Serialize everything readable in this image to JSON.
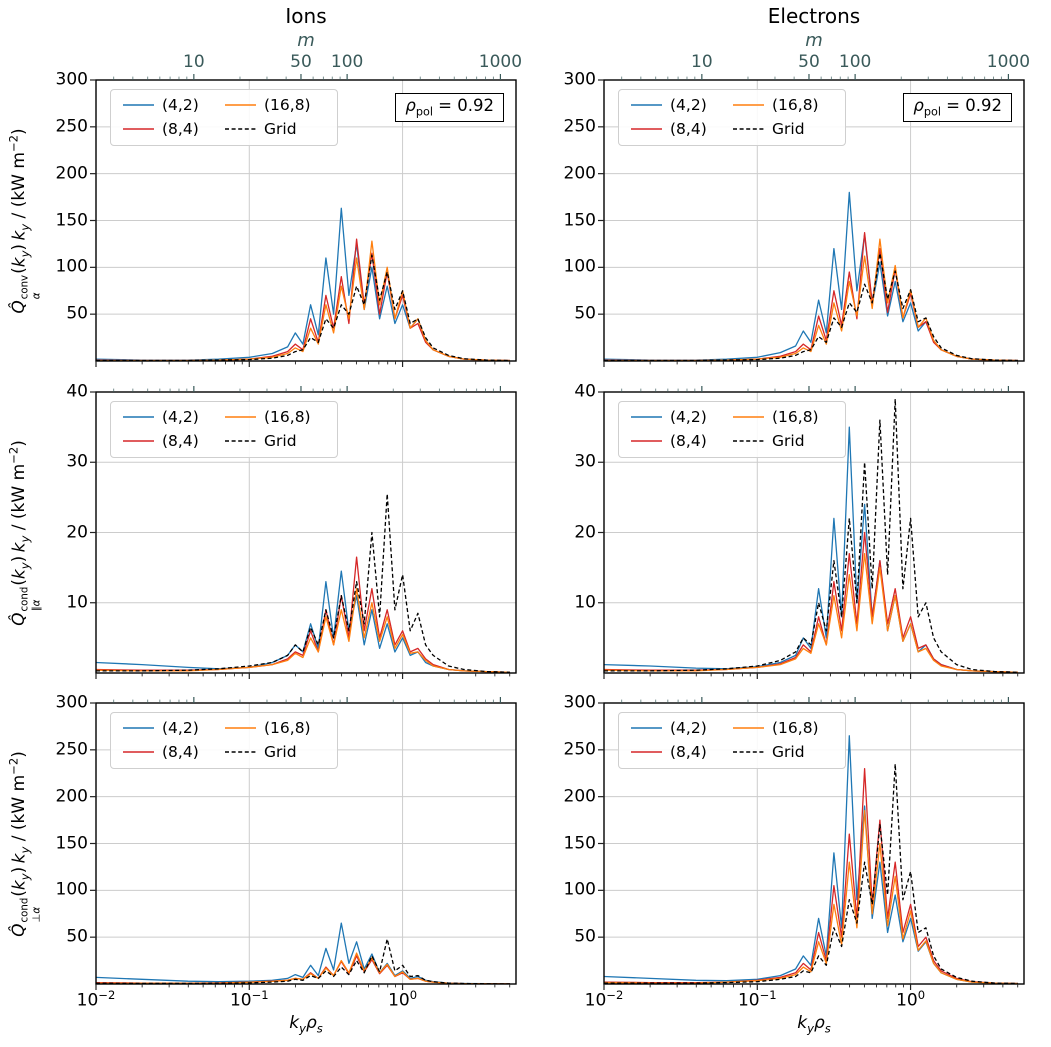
{
  "chart_data": {
    "type": "line",
    "description": "Spectral heat flux densities vs binormal wavenumber for ions and electrons at rho_pol = 0.92, comparing velocity-space resolutions (4,2), (8,4), (16,8) against Grid reference",
    "title_columns": [
      "Ions",
      "Electrons"
    ],
    "xlabel_html": "<i>k<sub>y</sub>ρ<sub>s</sub></i>",
    "xaxis": {
      "scale": "log",
      "lim_log10": [
        -2,
        0.74
      ],
      "ticks": [
        {
          "label_html": "10<sup>−2</sup>",
          "log10": -2
        },
        {
          "label_html": "10<sup>−1</sup>",
          "log10": -1
        },
        {
          "label_html": "10<sup>0</sup>",
          "log10": 0
        }
      ],
      "gridlines_log10": [
        -1,
        0
      ]
    },
    "top_axis": {
      "label_html": "<i>m</i>",
      "m_per_ky": 230,
      "tick_values": [
        10,
        50,
        100,
        1000
      ],
      "tick_labels": [
        "10",
        "50",
        "100",
        "1000"
      ],
      "color": "#3a5a5a"
    },
    "annotation_html": "<i>ρ</i><sub>pol</sub> = 0.92",
    "legend": [
      "(4,2)",
      "(8,4)",
      "(16,8)",
      "Grid"
    ],
    "series_meta": [
      {
        "name": "(4,2)",
        "color": "#1f77b4",
        "dash": null
      },
      {
        "name": "(8,4)",
        "color": "#d62728",
        "dash": null
      },
      {
        "name": "(16,8)",
        "color": "#ff7f0e",
        "dash": null
      },
      {
        "name": "Grid",
        "color": "#000000",
        "dash": "4,2.6"
      }
    ],
    "grid_color": "#cccccc",
    "x_log10": [
      -2,
      -1.7,
      -1.4,
      -1.2,
      -1.0,
      -0.85,
      -0.75,
      -0.7,
      -0.65,
      -0.6,
      -0.55,
      -0.5,
      -0.45,
      -0.4,
      -0.35,
      -0.3,
      -0.25,
      -0.2,
      -0.15,
      -0.1,
      -0.05,
      0,
      0.05,
      0.1,
      0.15,
      0.2,
      0.3,
      0.4,
      0.55,
      0.7
    ],
    "rows": [
      {
        "quantity": "convective heat flux",
        "ylabel_html": "<i>Q̂</i><span class='ss'><span>conv</span><span><i>α</i></span></span>(<i>k<sub>y</sub></i>)&thinsp;<i>k<sub>y</sub></i> / (kW m<sup>−2</sup>)",
        "ylim": [
          0,
          300
        ],
        "yticks": [
          50,
          100,
          150,
          200,
          250,
          300
        ]
      },
      {
        "quantity": "parallel conductive heat flux",
        "ylabel_html": "<i>Q̂</i><span class='ss'><span>cond</span><span>∥<i>α</i></span></span>(<i>k<sub>y</sub></i>)&thinsp;<i>k<sub>y</sub></i> / (kW m<sup>−2</sup>)",
        "ylim": [
          0,
          40
        ],
        "yticks": [
          10,
          20,
          30,
          40
        ]
      },
      {
        "quantity": "perpendicular conductive heat flux",
        "ylabel_html": "<i>Q̂</i><span class='ss'><span>cond</span><span>⊥<i>α</i></span></span>(<i>k<sub>y</sub></i>)&thinsp;<i>k<sub>y</sub></i> / (kW m<sup>−2</sup>)",
        "ylim": [
          0,
          300
        ],
        "yticks": [
          50,
          100,
          150,
          200,
          250,
          300
        ]
      }
    ],
    "panels": [
      {
        "row": 0,
        "col": 0,
        "name": "ions-conv",
        "series": [
          [
            2,
            1,
            1,
            2,
            4,
            8,
            15,
            30,
            18,
            60,
            28,
            110,
            50,
            163,
            70,
            125,
            55,
            100,
            45,
            80,
            40,
            60,
            35,
            45,
            22,
            12,
            5,
            2,
            1,
            0.5
          ],
          [
            1,
            0.5,
            0.5,
            1,
            2,
            5,
            10,
            18,
            12,
            45,
            20,
            70,
            35,
            90,
            40,
            130,
            60,
            115,
            50,
            95,
            45,
            70,
            35,
            40,
            20,
            12,
            5,
            2,
            1,
            0.5
          ],
          [
            0.5,
            0.5,
            0.5,
            1,
            2,
            4,
            8,
            14,
            10,
            35,
            18,
            60,
            30,
            80,
            45,
            110,
            55,
            128,
            60,
            100,
            45,
            75,
            35,
            45,
            22,
            12,
            5,
            2,
            1,
            0.5
          ],
          [
            0.5,
            0.5,
            0.5,
            1,
            1.5,
            3,
            6,
            10,
            12,
            25,
            20,
            45,
            35,
            60,
            50,
            80,
            60,
            113,
            65,
            95,
            55,
            75,
            40,
            45,
            25,
            14,
            6,
            2.5,
            1,
            0.5
          ]
        ]
      },
      {
        "row": 0,
        "col": 1,
        "name": "electrons-conv",
        "series": [
          [
            2,
            1,
            1,
            2,
            4,
            9,
            16,
            32,
            20,
            65,
            30,
            120,
            55,
            180,
            75,
            135,
            60,
            105,
            48,
            85,
            42,
            62,
            32,
            42,
            22,
            12,
            5,
            2,
            1,
            0.5
          ],
          [
            1,
            0.5,
            0.5,
            1,
            2,
            5,
            10,
            18,
            12,
            48,
            22,
            75,
            38,
            95,
            45,
            137,
            62,
            120,
            52,
            98,
            46,
            72,
            36,
            42,
            20,
            12,
            5,
            2,
            1,
            0.5
          ],
          [
            0.5,
            0.5,
            0.5,
            1,
            2,
            4,
            8,
            14,
            10,
            38,
            18,
            62,
            32,
            85,
            48,
            112,
            56,
            130,
            62,
            102,
            46,
            76,
            36,
            46,
            22,
            12,
            5,
            2,
            1,
            0.5
          ],
          [
            0.5,
            0.5,
            0.5,
            1,
            1.5,
            3,
            6,
            10,
            12,
            26,
            20,
            46,
            36,
            62,
            52,
            82,
            62,
            115,
            66,
            96,
            56,
            76,
            42,
            46,
            26,
            14,
            6,
            2.5,
            1,
            0.5
          ]
        ]
      },
      {
        "row": 1,
        "col": 0,
        "name": "ions-cond-par",
        "series": [
          [
            1.5,
            1.2,
            0.8,
            0.6,
            0.8,
            1.5,
            2.5,
            4,
            3,
            7,
            3.5,
            13,
            5,
            14.5,
            6,
            11,
            4,
            9,
            3.5,
            7,
            3,
            5,
            2.5,
            3,
            1.5,
            1,
            0.5,
            0.3,
            0.2,
            0.1
          ],
          [
            0.5,
            0.4,
            0.4,
            0.5,
            0.8,
            1.2,
            2,
            3,
            2.5,
            6,
            3,
            9,
            4,
            11,
            5,
            16.5,
            6,
            12,
            5,
            9,
            4,
            6,
            3,
            3.5,
            2,
            1.2,
            0.5,
            0.3,
            0.2,
            0.1
          ],
          [
            0.4,
            0.3,
            0.3,
            0.5,
            0.8,
            1.2,
            1.8,
            2.8,
            2.2,
            5,
            3,
            8,
            4,
            9,
            4.5,
            12,
            5,
            10,
            4.5,
            8,
            3.5,
            5.5,
            2.8,
            3,
            1.8,
            1,
            0.5,
            0.3,
            0.2,
            0.1
          ],
          [
            0.3,
            0.3,
            0.4,
            0.6,
            1,
            1.5,
            2.5,
            4,
            3,
            6.5,
            4,
            9,
            5,
            11,
            6,
            13,
            7,
            20,
            8,
            25.5,
            9,
            14,
            6,
            8.5,
            4,
            2.5,
            1,
            0.5,
            0.2,
            0.1
          ]
        ]
      },
      {
        "row": 1,
        "col": 1,
        "name": "electrons-cond-par",
        "series": [
          [
            1.2,
            1,
            0.7,
            0.6,
            0.9,
            1.5,
            2.5,
            5,
            3.5,
            12,
            5,
            22,
            8,
            35,
            10,
            24,
            8,
            16,
            6,
            11,
            4.5,
            7,
            3,
            4,
            2,
            1.2,
            0.5,
            0.3,
            0.2,
            0.1
          ],
          [
            0.5,
            0.4,
            0.4,
            0.5,
            0.8,
            1.3,
            2.2,
            4,
            3,
            8,
            4,
            13,
            6,
            17,
            7,
            20,
            8,
            16,
            7,
            12,
            5,
            8,
            3.5,
            4,
            2,
            1.2,
            0.5,
            0.3,
            0.2,
            0.1
          ],
          [
            0.4,
            0.3,
            0.3,
            0.5,
            0.8,
            1.2,
            2,
            3.5,
            2.8,
            7,
            4,
            11,
            5,
            14,
            6,
            17,
            7,
            15,
            6,
            11,
            4.5,
            7,
            3,
            3.5,
            1.8,
            1,
            0.5,
            0.3,
            0.2,
            0.1
          ],
          [
            0.3,
            0.3,
            0.4,
            0.6,
            1,
            1.8,
            3,
            5,
            4,
            10,
            6,
            16,
            8,
            22,
            10,
            30,
            12,
            36,
            14,
            39,
            12,
            22,
            8,
            10,
            5,
            3,
            1.2,
            0.5,
            0.2,
            0.1
          ]
        ]
      },
      {
        "row": 2,
        "col": 0,
        "name": "ions-cond-perp",
        "series": [
          [
            7,
            5,
            3,
            2.5,
            3,
            4,
            6,
            10,
            7,
            20,
            9,
            38,
            15,
            65,
            22,
            45,
            16,
            32,
            12,
            22,
            9,
            14,
            6,
            8,
            4,
            2.5,
            1,
            0.5,
            0.3,
            0.2
          ],
          [
            1.5,
            1,
            1,
            1.2,
            2,
            3,
            4,
            6,
            5,
            12,
            6,
            18,
            9,
            24,
            11,
            30,
            13,
            26,
            11,
            20,
            8,
            12,
            5,
            6,
            3,
            2,
            0.8,
            0.4,
            0.2,
            0.1
          ],
          [
            1,
            0.8,
            0.8,
            1,
            1.8,
            2.8,
            4,
            6,
            5,
            11,
            6,
            17,
            9,
            25,
            12,
            33,
            14,
            28,
            12,
            21,
            8,
            13,
            5,
            6,
            3,
            2,
            0.8,
            0.4,
            0.2,
            0.1
          ],
          [
            0.8,
            0.6,
            0.6,
            0.8,
            1.2,
            2,
            3,
            5,
            4,
            9,
            6,
            14,
            8,
            18,
            10,
            25,
            12,
            30,
            13,
            48,
            14,
            20,
            8,
            9,
            4,
            2.5,
            1,
            0.5,
            0.2,
            0.1
          ]
        ]
      },
      {
        "row": 2,
        "col": 1,
        "name": "electrons-cond-perp",
        "series": [
          [
            8,
            6,
            4,
            3.5,
            5,
            9,
            16,
            30,
            20,
            70,
            30,
            140,
            60,
            265,
            90,
            190,
            70,
            130,
            55,
            95,
            45,
            70,
            35,
            45,
            22,
            12,
            5,
            2,
            1,
            0.5
          ],
          [
            2,
            1.5,
            1.5,
            2,
            4,
            7,
            12,
            22,
            15,
            55,
            25,
            105,
            50,
            160,
            70,
            230,
            85,
            175,
            70,
            130,
            55,
            85,
            40,
            50,
            25,
            14,
            6,
            2.5,
            1,
            0.5
          ],
          [
            1.5,
            1,
            1,
            2,
            3.5,
            6,
            10,
            18,
            13,
            45,
            22,
            85,
            42,
            130,
            60,
            185,
            75,
            150,
            62,
            115,
            48,
            78,
            36,
            46,
            22,
            12,
            5,
            2,
            1,
            0.5
          ],
          [
            1,
            1,
            1,
            1.5,
            2.5,
            5,
            8,
            14,
            12,
            30,
            20,
            60,
            40,
            90,
            65,
            130,
            85,
            170,
            95,
            235,
            90,
            120,
            55,
            60,
            30,
            16,
            7,
            3,
            1,
            0.5
          ]
        ]
      }
    ]
  }
}
